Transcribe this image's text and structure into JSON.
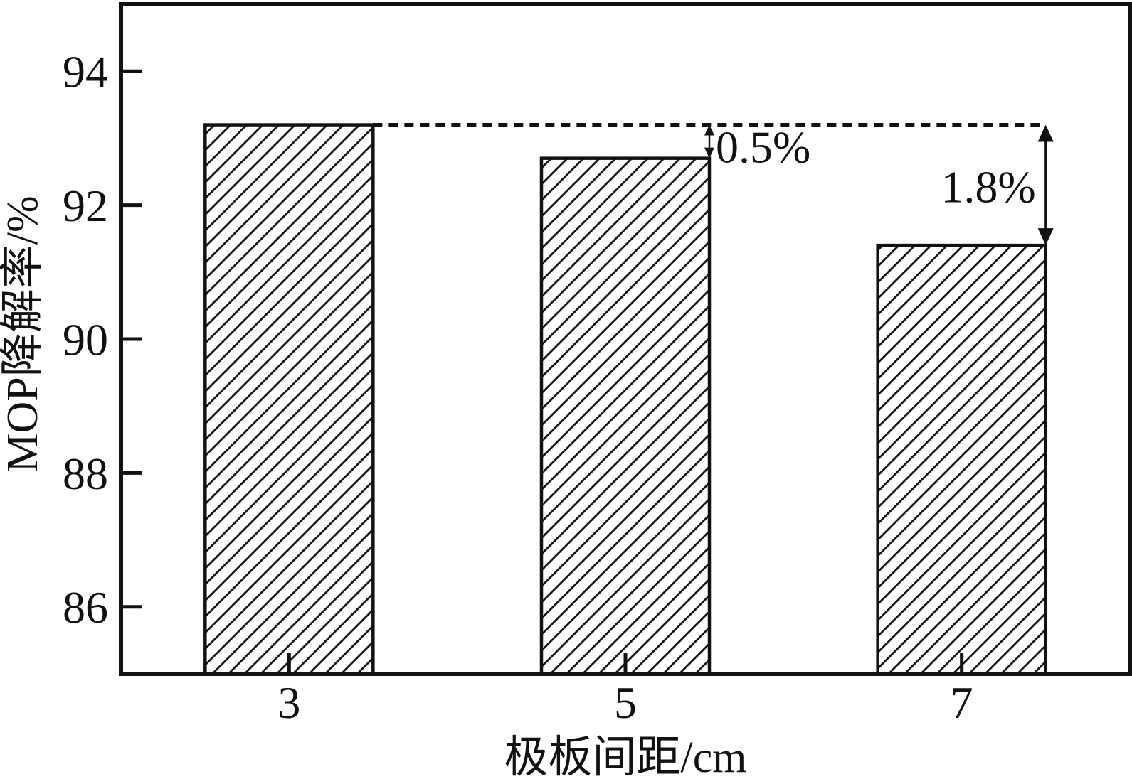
{
  "figure": {
    "background": "#ffffff",
    "ink_color": "#111111"
  },
  "chart_data": {
    "type": "bar",
    "title": "",
    "categories": [
      "3",
      "5",
      "7"
    ],
    "values": [
      93.2,
      92.7,
      91.4
    ],
    "xlabel": "极板间距/cm",
    "ylabel": "MOP降解率/%",
    "ylim": [
      85,
      95
    ],
    "yticks": [
      86,
      88,
      90,
      92,
      94
    ],
    "grid": false,
    "legend": null,
    "bar_style": {
      "fill": "#ffffff",
      "hatch": "diagonal-forward",
      "edge_color": "#111111"
    },
    "reference_line": {
      "style": "dotted",
      "y_value": 93.2
    },
    "annotations": [
      {
        "label": "0.5%",
        "category": "5",
        "arrow": "double-headed-vertical"
      },
      {
        "label": "1.8%",
        "category": "7",
        "arrow": "double-headed-vertical"
      }
    ]
  }
}
